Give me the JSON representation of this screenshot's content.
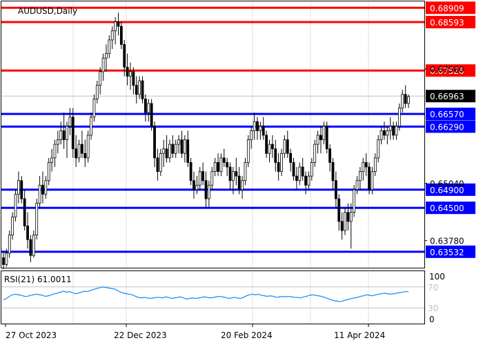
{
  "header": {
    "symbol": "AUDUSD",
    "timeframe": "Daily",
    "title_text": "AUDUSD,Daily"
  },
  "colors": {
    "background": "#ffffff",
    "frame": "#000000",
    "grid": "#c0c0c0",
    "resistance": "#ff0000",
    "support": "#0000ff",
    "rsi_line": "#1e90ff",
    "candle": "#000000",
    "current_price_bg": "#000000"
  },
  "chart_data": {
    "type": "candlestick",
    "timeframe": "Daily",
    "ylim": [
      0.6318,
      0.6905
    ],
    "price_axis_ticks": [
      "0.67560",
      "0.65040",
      "0.63780"
    ],
    "current_price": "0.66963",
    "resistance_levels": [
      "0.68909",
      "0.68593",
      "0.67526"
    ],
    "support_levels": [
      "0.66570",
      "0.66290",
      "0.64900",
      "0.64500",
      "0.63532"
    ],
    "x_tick_labels": [
      "27 Oct 2023",
      "22 Dec 2023",
      "20 Feb 2024",
      "11 Apr 2024"
    ],
    "candles": [
      [
        0.634,
        0.6355,
        0.6315,
        0.6325
      ],
      [
        0.6325,
        0.636,
        0.632,
        0.635
      ],
      [
        0.635,
        0.64,
        0.634,
        0.639
      ],
      [
        0.639,
        0.644,
        0.638,
        0.643
      ],
      [
        0.643,
        0.649,
        0.642,
        0.648
      ],
      [
        0.648,
        0.653,
        0.646,
        0.651
      ],
      [
        0.651,
        0.652,
        0.646,
        0.647
      ],
      [
        0.647,
        0.649,
        0.64,
        0.641
      ],
      [
        0.641,
        0.644,
        0.636,
        0.638
      ],
      [
        0.638,
        0.639,
        0.633,
        0.6345
      ],
      [
        0.6345,
        0.64,
        0.634,
        0.639
      ],
      [
        0.639,
        0.647,
        0.638,
        0.646
      ],
      [
        0.646,
        0.652,
        0.645,
        0.65
      ],
      [
        0.65,
        0.653,
        0.646,
        0.648
      ],
      [
        0.648,
        0.652,
        0.647,
        0.651
      ],
      [
        0.651,
        0.656,
        0.65,
        0.655
      ],
      [
        0.655,
        0.658,
        0.653,
        0.656
      ],
      [
        0.656,
        0.66,
        0.654,
        0.659
      ],
      [
        0.659,
        0.662,
        0.657,
        0.66
      ],
      [
        0.66,
        0.664,
        0.659,
        0.662
      ],
      [
        0.662,
        0.666,
        0.658,
        0.66
      ],
      [
        0.66,
        0.664,
        0.656,
        0.663
      ],
      [
        0.663,
        0.667,
        0.661,
        0.665
      ],
      [
        0.665,
        0.667,
        0.656,
        0.658
      ],
      [
        0.658,
        0.661,
        0.654,
        0.656
      ],
      [
        0.656,
        0.66,
        0.655,
        0.659
      ],
      [
        0.659,
        0.662,
        0.656,
        0.657
      ],
      [
        0.657,
        0.66,
        0.654,
        0.656
      ],
      [
        0.656,
        0.662,
        0.655,
        0.661
      ],
      [
        0.661,
        0.666,
        0.66,
        0.665
      ],
      [
        0.665,
        0.67,
        0.664,
        0.669
      ],
      [
        0.669,
        0.673,
        0.668,
        0.672
      ],
      [
        0.672,
        0.676,
        0.67,
        0.675
      ],
      [
        0.675,
        0.679,
        0.673,
        0.678
      ],
      [
        0.678,
        0.681,
        0.675,
        0.679
      ],
      [
        0.679,
        0.683,
        0.678,
        0.682
      ],
      [
        0.682,
        0.685,
        0.68,
        0.684
      ],
      [
        0.684,
        0.687,
        0.681,
        0.686
      ],
      [
        0.686,
        0.688,
        0.683,
        0.685
      ],
      [
        0.685,
        0.686,
        0.68,
        0.681
      ],
      [
        0.681,
        0.682,
        0.674,
        0.676
      ],
      [
        0.676,
        0.679,
        0.672,
        0.674
      ],
      [
        0.674,
        0.677,
        0.671,
        0.675
      ],
      [
        0.675,
        0.676,
        0.67,
        0.672
      ],
      [
        0.672,
        0.674,
        0.668,
        0.67
      ],
      [
        0.67,
        0.674,
        0.669,
        0.673
      ],
      [
        0.673,
        0.674,
        0.668,
        0.669
      ],
      [
        0.669,
        0.67,
        0.664,
        0.666
      ],
      [
        0.666,
        0.669,
        0.664,
        0.668
      ],
      [
        0.668,
        0.669,
        0.662,
        0.663
      ],
      [
        0.663,
        0.664,
        0.654,
        0.656
      ],
      [
        0.656,
        0.658,
        0.651,
        0.653
      ],
      [
        0.653,
        0.658,
        0.652,
        0.657
      ],
      [
        0.657,
        0.66,
        0.654,
        0.658
      ],
      [
        0.658,
        0.661,
        0.655,
        0.656
      ],
      [
        0.656,
        0.66,
        0.655,
        0.659
      ],
      [
        0.659,
        0.661,
        0.656,
        0.657
      ],
      [
        0.657,
        0.66,
        0.656,
        0.659
      ],
      [
        0.659,
        0.661,
        0.657,
        0.66
      ],
      [
        0.66,
        0.662,
        0.656,
        0.657
      ],
      [
        0.657,
        0.661,
        0.655,
        0.66
      ],
      [
        0.66,
        0.662,
        0.654,
        0.655
      ],
      [
        0.655,
        0.656,
        0.65,
        0.651
      ],
      [
        0.651,
        0.653,
        0.647,
        0.649
      ],
      [
        0.649,
        0.652,
        0.648,
        0.65
      ],
      [
        0.65,
        0.654,
        0.649,
        0.653
      ],
      [
        0.653,
        0.655,
        0.65,
        0.651
      ],
      [
        0.651,
        0.653,
        0.645,
        0.647
      ],
      [
        0.647,
        0.651,
        0.645,
        0.65
      ],
      [
        0.65,
        0.654,
        0.649,
        0.653
      ],
      [
        0.653,
        0.656,
        0.652,
        0.655
      ],
      [
        0.655,
        0.657,
        0.652,
        0.653
      ],
      [
        0.653,
        0.657,
        0.652,
        0.656
      ],
      [
        0.656,
        0.658,
        0.654,
        0.655
      ],
      [
        0.655,
        0.656,
        0.652,
        0.654
      ],
      [
        0.654,
        0.655,
        0.649,
        0.651
      ],
      [
        0.651,
        0.654,
        0.648,
        0.653
      ],
      [
        0.653,
        0.656,
        0.65,
        0.652
      ],
      [
        0.652,
        0.654,
        0.648,
        0.649
      ],
      [
        0.649,
        0.652,
        0.647,
        0.651
      ],
      [
        0.651,
        0.656,
        0.65,
        0.655
      ],
      [
        0.655,
        0.661,
        0.654,
        0.66
      ],
      [
        0.66,
        0.663,
        0.658,
        0.662
      ],
      [
        0.662,
        0.666,
        0.66,
        0.664
      ],
      [
        0.664,
        0.665,
        0.66,
        0.662
      ],
      [
        0.662,
        0.664,
        0.66,
        0.663
      ],
      [
        0.663,
        0.665,
        0.66,
        0.661
      ],
      [
        0.661,
        0.662,
        0.656,
        0.657
      ],
      [
        0.657,
        0.66,
        0.655,
        0.659
      ],
      [
        0.659,
        0.661,
        0.656,
        0.658
      ],
      [
        0.658,
        0.66,
        0.653,
        0.655
      ],
      [
        0.655,
        0.657,
        0.651,
        0.653
      ],
      [
        0.653,
        0.658,
        0.652,
        0.657
      ],
      [
        0.657,
        0.661,
        0.656,
        0.66
      ],
      [
        0.66,
        0.662,
        0.656,
        0.657
      ],
      [
        0.657,
        0.658,
        0.653,
        0.655
      ],
      [
        0.655,
        0.656,
        0.651,
        0.652
      ],
      [
        0.652,
        0.654,
        0.649,
        0.651
      ],
      [
        0.651,
        0.655,
        0.65,
        0.654
      ],
      [
        0.654,
        0.656,
        0.651,
        0.652
      ],
      [
        0.652,
        0.653,
        0.648,
        0.65
      ],
      [
        0.65,
        0.653,
        0.649,
        0.652
      ],
      [
        0.652,
        0.656,
        0.651,
        0.655
      ],
      [
        0.655,
        0.66,
        0.654,
        0.659
      ],
      [
        0.659,
        0.662,
        0.657,
        0.661
      ],
      [
        0.661,
        0.663,
        0.657,
        0.66
      ],
      [
        0.66,
        0.664,
        0.659,
        0.663
      ],
      [
        0.663,
        0.664,
        0.657,
        0.658
      ],
      [
        0.658,
        0.659,
        0.653,
        0.655
      ],
      [
        0.655,
        0.656,
        0.649,
        0.651
      ],
      [
        0.651,
        0.653,
        0.645,
        0.647
      ],
      [
        0.647,
        0.648,
        0.64,
        0.642
      ],
      [
        0.642,
        0.644,
        0.638,
        0.64
      ],
      [
        0.64,
        0.645,
        0.639,
        0.644
      ],
      [
        0.644,
        0.646,
        0.64,
        0.642
      ],
      [
        0.642,
        0.646,
        0.636,
        0.644
      ],
      [
        0.644,
        0.65,
        0.643,
        0.649
      ],
      [
        0.649,
        0.652,
        0.648,
        0.651
      ],
      [
        0.651,
        0.654,
        0.649,
        0.653
      ],
      [
        0.653,
        0.656,
        0.651,
        0.655
      ],
      [
        0.655,
        0.657,
        0.652,
        0.654
      ],
      [
        0.654,
        0.655,
        0.648,
        0.649
      ],
      [
        0.649,
        0.654,
        0.648,
        0.653
      ],
      [
        0.653,
        0.657,
        0.652,
        0.656
      ],
      [
        0.656,
        0.661,
        0.655,
        0.66
      ],
      [
        0.66,
        0.663,
        0.659,
        0.662
      ],
      [
        0.662,
        0.664,
        0.66,
        0.661
      ],
      [
        0.661,
        0.663,
        0.659,
        0.662
      ],
      [
        0.662,
        0.665,
        0.66,
        0.663
      ],
      [
        0.663,
        0.664,
        0.66,
        0.661
      ],
      [
        0.661,
        0.664,
        0.66,
        0.663
      ],
      [
        0.663,
        0.668,
        0.662,
        0.667
      ],
      [
        0.667,
        0.671,
        0.666,
        0.67
      ],
      [
        0.67,
        0.672,
        0.667,
        0.668
      ],
      [
        0.668,
        0.67,
        0.667,
        0.6695
      ]
    ],
    "rsi": {
      "label": "RSI(21)",
      "value_text": "61.0011",
      "levels": [
        "70",
        "30"
      ],
      "scale_labels": [
        "100",
        "0"
      ],
      "values": [
        45,
        48,
        52,
        55,
        56,
        55,
        54,
        52,
        52,
        54,
        55,
        56,
        55,
        54,
        52,
        53,
        55,
        57,
        58,
        60,
        62,
        60,
        61,
        59,
        57,
        58,
        60,
        62,
        61,
        63,
        65,
        67,
        68,
        70,
        69,
        68,
        67,
        66,
        63,
        60,
        58,
        57,
        56,
        55,
        52,
        50,
        49,
        50,
        49,
        48,
        49,
        50,
        50,
        49,
        51,
        50,
        48,
        49,
        50,
        51,
        49,
        47,
        48,
        49,
        48,
        49,
        50,
        51,
        50,
        49,
        50,
        51,
        52,
        51,
        50,
        48,
        49,
        50,
        49,
        48,
        50,
        53,
        55,
        56,
        55,
        56,
        54,
        53,
        52,
        53,
        52,
        50,
        51,
        52,
        51,
        52,
        51,
        50,
        50,
        49,
        51,
        52,
        54,
        55,
        54,
        53,
        52,
        50,
        48,
        46,
        44,
        43,
        42,
        43,
        45,
        46,
        48,
        49,
        50,
        52,
        53,
        55,
        54,
        53,
        55,
        56,
        57,
        58,
        57,
        56,
        57,
        58,
        59,
        60,
        61,
        61
      ]
    }
  }
}
